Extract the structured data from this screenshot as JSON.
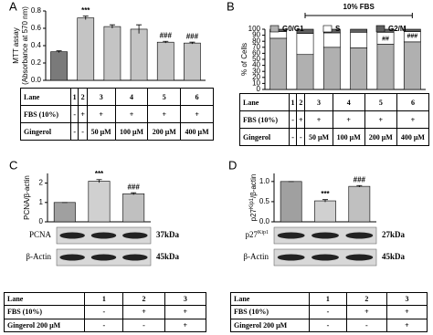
{
  "chart_data": [
    {
      "type": "bar",
      "panel_label": "A",
      "ylabel": [
        "MTT assay",
        "(Absorbance at 570 nm)"
      ],
      "categories": [
        "1",
        "2",
        "3",
        "4",
        "5",
        "6"
      ],
      "values": [
        0.33,
        0.72,
        0.62,
        0.59,
        0.44,
        0.43
      ],
      "errors": [
        0.01,
        0.02,
        0.02,
        0.05,
        0.01,
        0.01
      ],
      "colors": [
        "#7a7a7a",
        "#c4c4c4",
        "#c4c4c4",
        "#c4c4c4",
        "#c4c4c4",
        "#c4c4c4"
      ],
      "annotations": [
        null,
        "***",
        null,
        null,
        "###",
        "###"
      ],
      "ylim": [
        0,
        0.8
      ],
      "yticks": [
        {
          "value": 0,
          "label": "0.0"
        },
        0.2,
        0.4,
        0.6,
        0.8
      ],
      "table": {
        "rows": [
          [
            "Lane",
            "1",
            "2",
            "3",
            "4",
            "5",
            "6"
          ],
          [
            "FBS (10%)",
            "-",
            "+",
            "+",
            "+",
            "+",
            "+"
          ],
          [
            "Gingerol",
            "-",
            "-",
            "50 μM",
            "100 μM",
            "200 μM",
            "400 μM"
          ]
        ]
      }
    },
    {
      "type": "stacked_bar",
      "panel_label": "B",
      "title": "10% FBS",
      "ylabel": [
        "% of Cells"
      ],
      "categories": [
        "1",
        "2",
        "3",
        "4",
        "5",
        "6"
      ],
      "series": [
        {
          "name": "G0/G1",
          "color": "#b0b0b0",
          "values": [
            85,
            58,
            70,
            69,
            75,
            79
          ]
        },
        {
          "name": "S",
          "color": "#ffffff",
          "values": [
            11,
            35,
            24,
            26,
            20,
            17
          ]
        },
        {
          "name": "G2/M",
          "color": "#606060",
          "values": [
            4,
            7,
            6,
            5,
            5,
            4
          ]
        }
      ],
      "annotations": [
        null,
        "***",
        null,
        null,
        "##",
        "###"
      ],
      "ylim": [
        0,
        100
      ],
      "yticks": [
        0,
        10,
        20,
        30,
        40,
        50,
        60,
        70,
        80,
        90,
        100
      ],
      "table": {
        "rows": [
          [
            "Lane",
            "1",
            "2",
            "3",
            "4",
            "5",
            "6"
          ],
          [
            "FBS (10%)",
            "-",
            "+",
            "+",
            "+",
            "+",
            "+"
          ],
          [
            "Gingerol",
            "-",
            "-",
            "50 μM",
            "100 μM",
            "200 μM",
            "400 μM"
          ]
        ]
      }
    },
    {
      "type": "bar",
      "panel_label": "C",
      "ylabel": [
        "PCNA/β-actin"
      ],
      "categories": [
        "1",
        "2",
        "3"
      ],
      "values": [
        1.0,
        2.1,
        1.45
      ],
      "errors": [
        0.0,
        0.08,
        0.05
      ],
      "colors": [
        "#a0a0a0",
        "#d0d0d0",
        "#c0c0c0"
      ],
      "annotations": [
        null,
        "***",
        "###"
      ],
      "ylim": [
        0,
        2.5
      ],
      "yticks": [
        0,
        1,
        2
      ],
      "blots": [
        {
          "protein": "PCNA",
          "size": "37kDa"
        },
        {
          "protein": "β-Actin",
          "size": "45kDa"
        }
      ],
      "table": {
        "rows": [
          [
            "Lane",
            "1",
            "2",
            "3"
          ],
          [
            "FBS (10%)",
            "-",
            "+",
            "+"
          ],
          [
            "Gingerol 200 μM",
            "-",
            "-",
            "+"
          ]
        ]
      }
    },
    {
      "type": "bar",
      "panel_label": "D",
      "ylabel": [
        "p27",
        "Kip1",
        "/β-actin"
      ],
      "categories": [
        "1",
        "2",
        "3"
      ],
      "values": [
        1.0,
        0.52,
        0.88
      ],
      "errors": [
        0.0,
        0.03,
        0.02
      ],
      "colors": [
        "#a0a0a0",
        "#d0d0d0",
        "#c0c0c0"
      ],
      "annotations": [
        null,
        "***",
        "###"
      ],
      "ylim": [
        0,
        1.2
      ],
      "yticks": [
        {
          "value": 0,
          "label": "0.0"
        },
        0.5,
        {
          "value": 1,
          "label": "1.0"
        }
      ],
      "blots": [
        {
          "protein": "p27",
          "sup": "Kip1",
          "size": "27kDa"
        },
        {
          "protein": "β-Actin",
          "size": "45kDa"
        }
      ],
      "table": {
        "rows": [
          [
            "Lane",
            "1",
            "2",
            "3"
          ],
          [
            "FBS (10%)",
            "-",
            "+",
            "+"
          ],
          [
            "Gingerol 200 μM",
            "-",
            "-",
            "+"
          ]
        ]
      }
    }
  ]
}
